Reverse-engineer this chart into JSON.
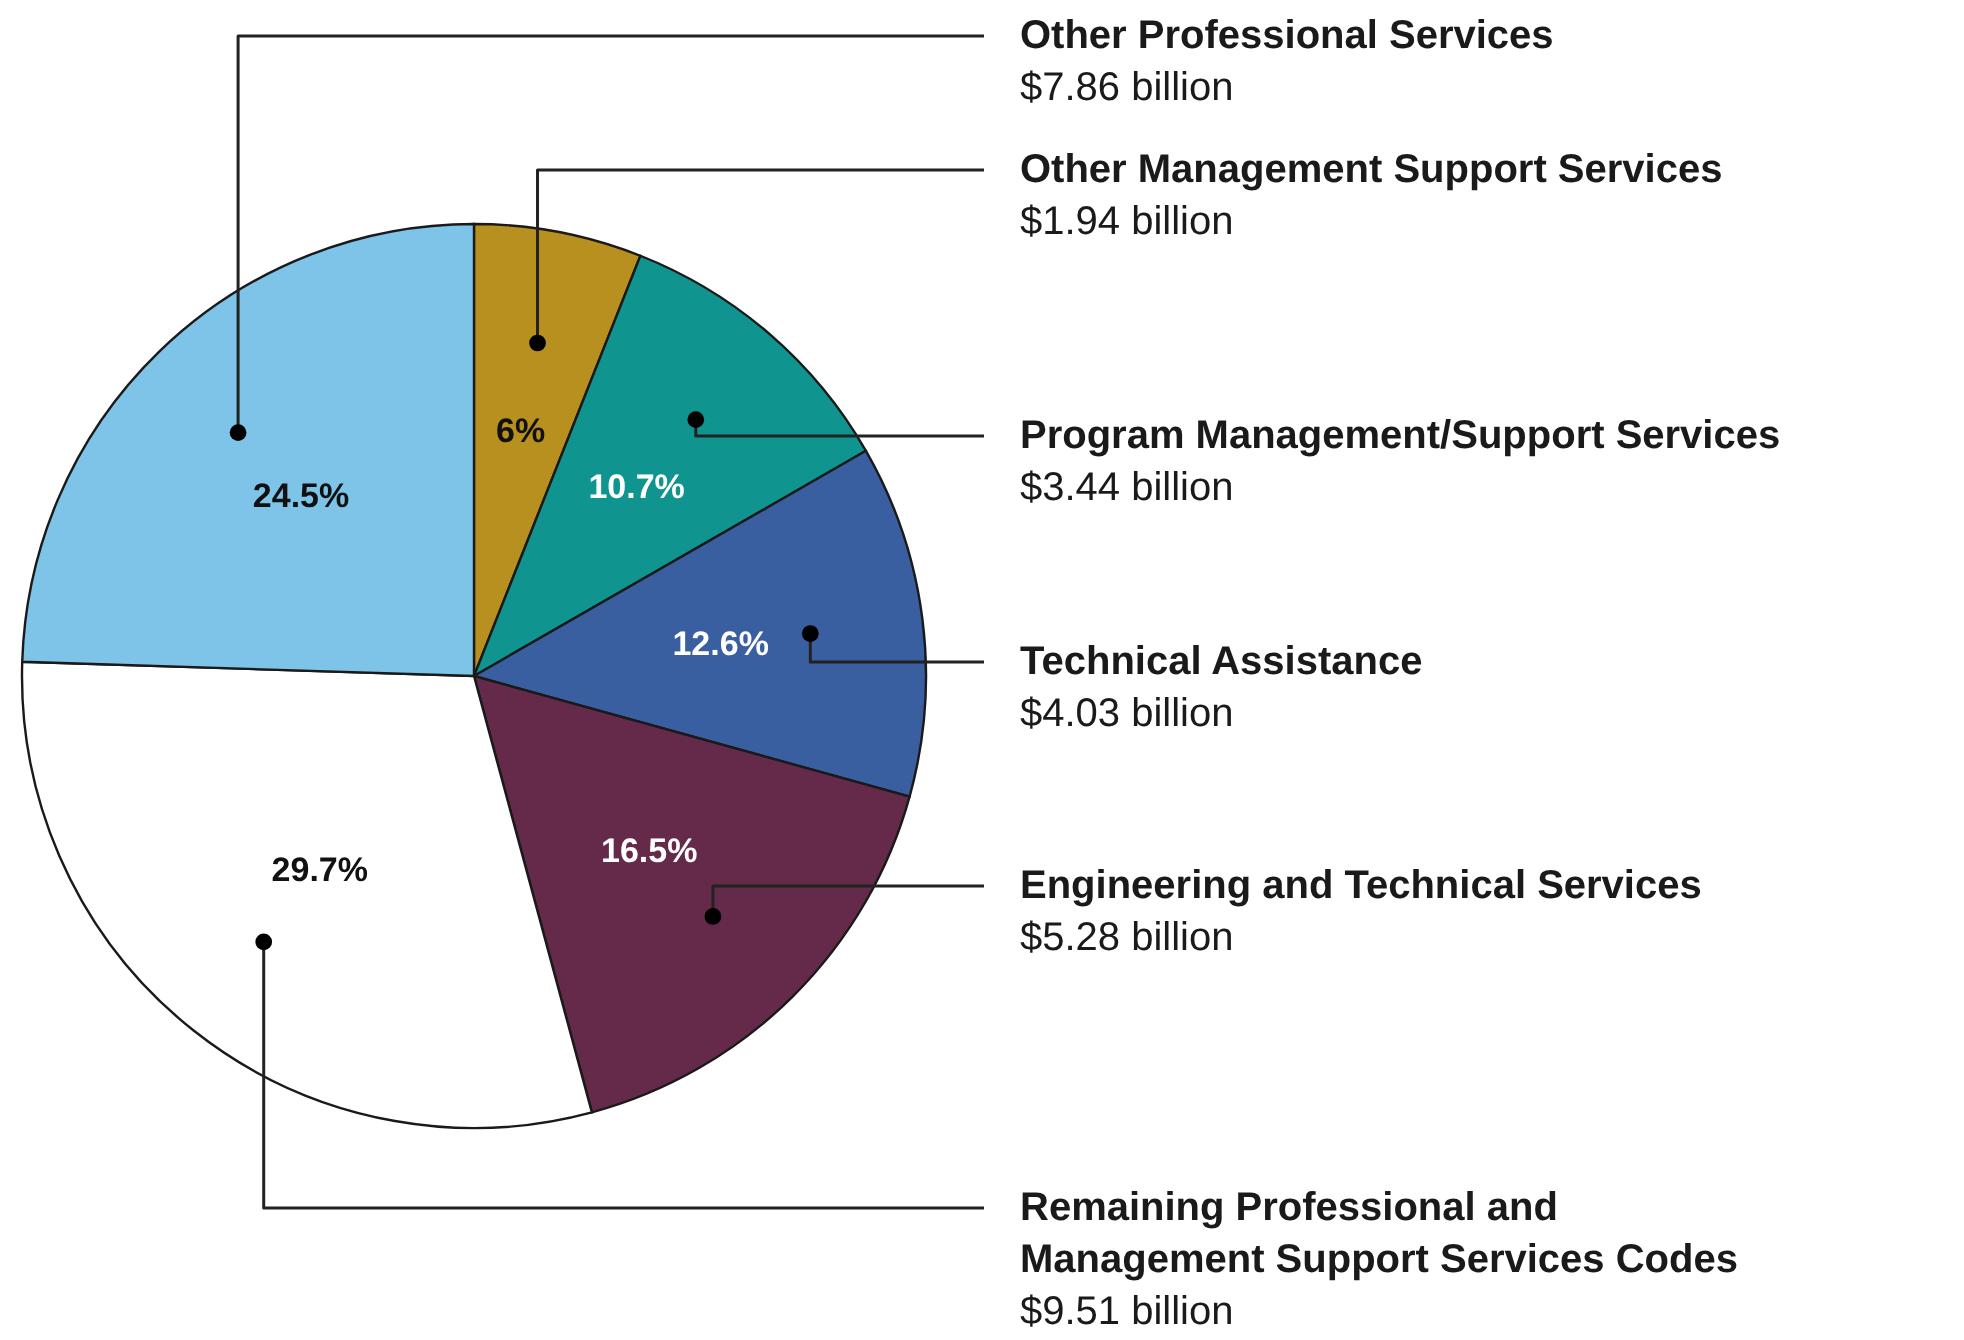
{
  "chart_data": {
    "type": "pie",
    "categories": [
      "Other Management Support Services",
      "Program Management/Support Services",
      "Technical Assistance",
      "Engineering and Technical Services",
      "Remaining Professional and Management Support Services Codes",
      "Other Professional Services"
    ],
    "values": [
      6,
      10.7,
      12.6,
      16.5,
      29.7,
      24.5
    ],
    "colors": [
      "#b8901f",
      "#0f9490",
      "#3a5fa0",
      "#652a4a",
      "#ffffff",
      "#7ec4e8"
    ],
    "value_labels": [
      "6%",
      "10.7%",
      "12.6%",
      "16.5%",
      "29.7%",
      "24.5%"
    ],
    "annotations": [
      "$1.94 billion",
      "$3.44 billion",
      "$4.03 billion",
      "$5.28 billion",
      "$9.51 billion",
      "$7.86 billion"
    ]
  }
}
